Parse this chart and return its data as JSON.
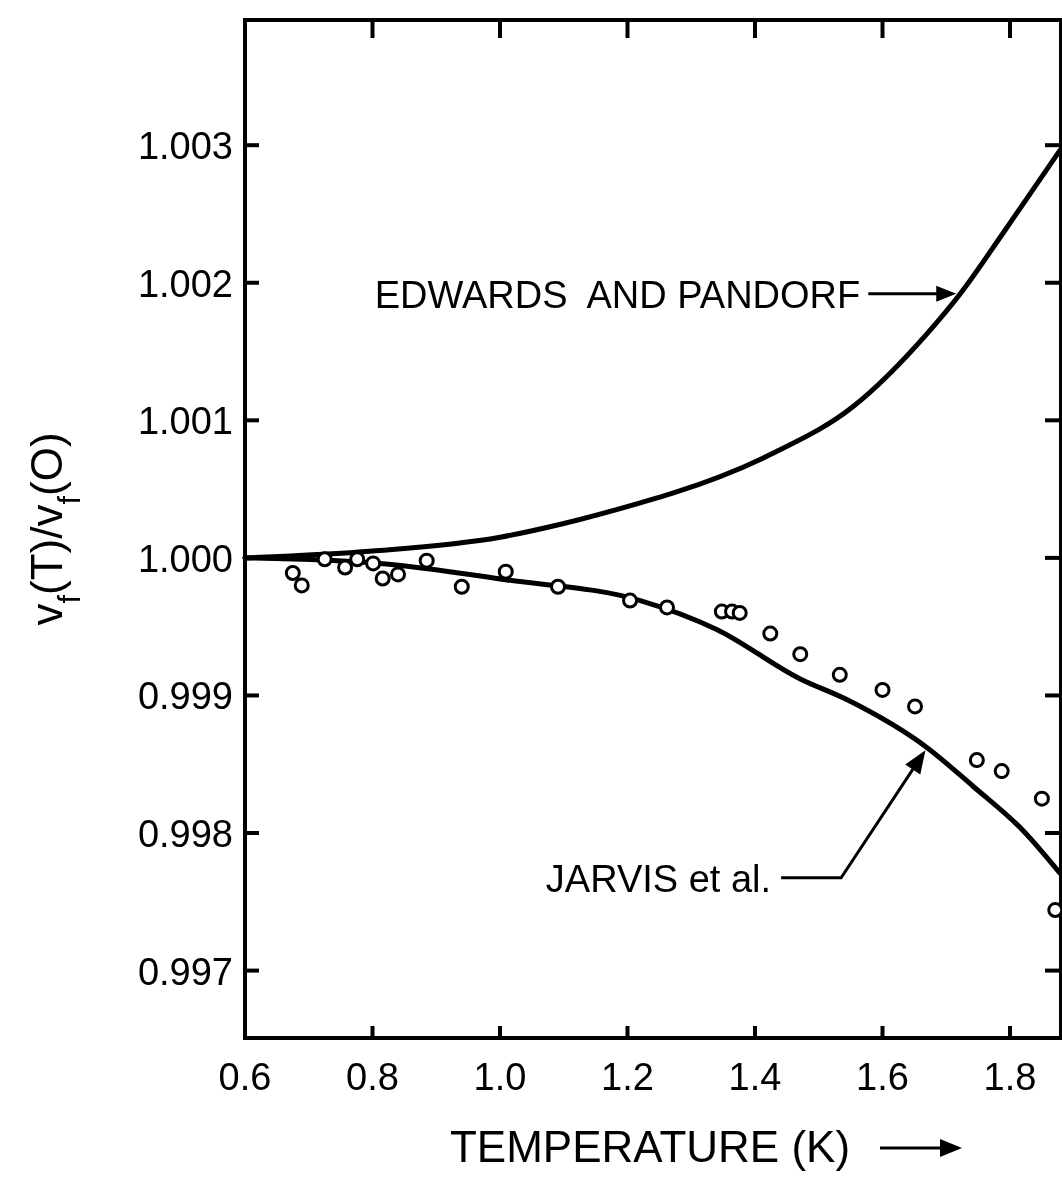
{
  "chart_data": {
    "type": "line",
    "xlabel": "TEMPERATURE (K)",
    "ylabel": "v$_{f}$(T)/v$_{f}$(O)",
    "xlim": [
      0.6,
      1.88
    ],
    "ylim": [
      0.99651,
      1.00391
    ],
    "xticks": [
      0.6,
      0.8,
      {
        "value": 1.0,
        "label": "1.0"
      },
      1.2,
      1.4,
      1.6,
      1.8
    ],
    "yticks": [
      {
        "value": 0.997,
        "label": "0.997"
      },
      {
        "value": 0.998,
        "label": "0.998"
      },
      {
        "value": 0.999,
        "label": "0.999"
      },
      {
        "value": 1.0,
        "label": "1.000"
      },
      {
        "value": 1.001,
        "label": "1.001"
      },
      {
        "value": 1.002,
        "label": "1.002"
      },
      {
        "value": 1.003,
        "label": "1.003"
      }
    ],
    "grid": false,
    "line_style": "solid",
    "series": [
      {
        "name": "EDWARDS  AND PANDORF",
        "color": "#000000",
        "x": [
          0.6,
          0.8,
          1.0,
          1.1,
          1.22,
          1.271,
          1.428,
          1.554,
          1.67,
          1.722,
          1.789,
          1.878
        ],
        "values": [
          1.0,
          1.00005,
          1.00015,
          1.00025,
          1.0004,
          1.00047,
          1.00076,
          1.0011,
          1.00163,
          1.00192,
          1.00236,
          1.00296
        ]
      },
      {
        "name": "JARVIS et al.",
        "color": "#000000",
        "x": [
          0.6,
          0.812,
          1.011,
          1.22,
          1.34,
          1.471,
          1.544,
          1.67,
          1.742,
          1.82,
          1.878
        ],
        "values": [
          1.0,
          0.99996,
          0.99984,
          0.99969,
          0.99948,
          0.99912,
          0.99897,
          0.99862,
          0.99834,
          0.99802,
          0.99771
        ]
      },
      {
        "type": "scatter",
        "marker": "circle",
        "color": "#000000",
        "x": [
          0.675,
          0.689,
          0.725,
          0.757,
          0.776,
          0.801,
          0.816,
          0.84,
          0.885,
          0.94,
          1.009,
          1.091,
          1.204,
          1.262,
          1.348,
          1.364,
          1.376,
          1.424,
          1.471,
          1.533,
          1.6,
          1.651,
          1.748,
          1.787,
          1.85,
          1.871
        ],
        "values": [
          0.99989,
          0.9998,
          0.99999,
          0.99993,
          0.99999,
          0.99996,
          0.99985,
          0.99988,
          0.99998,
          0.99979,
          0.9999,
          0.99979,
          0.99969,
          0.99964,
          0.99961,
          0.99961,
          0.9996,
          0.99945,
          0.9993,
          0.99915,
          0.99904,
          0.99892,
          0.99853,
          0.99845,
          0.99825,
          0.99744
        ]
      }
    ]
  }
}
